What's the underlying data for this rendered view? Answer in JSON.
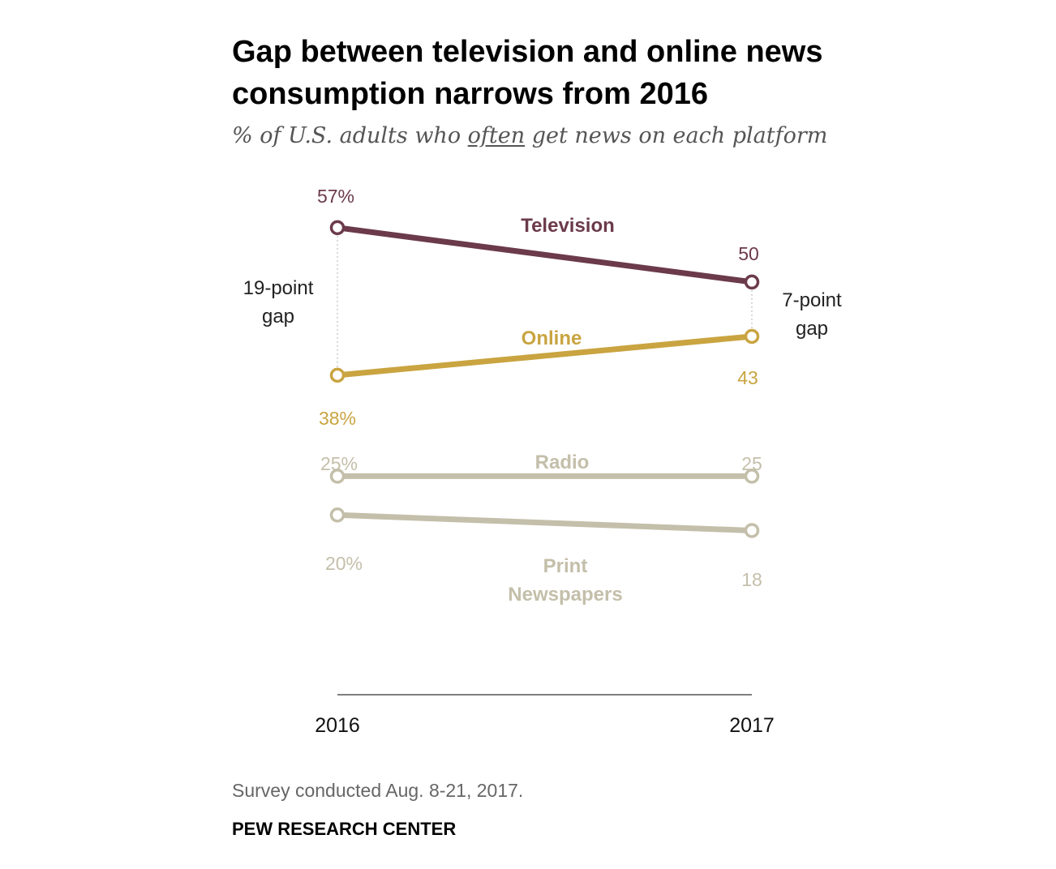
{
  "chart_data": {
    "type": "line",
    "title": "Gap between television and online news consumption narrows from 2016",
    "subtitle": {
      "before": "% of U.S. adults who ",
      "emphasis": "often",
      "after": " get news on each platform"
    },
    "x": [
      "2016",
      "2017"
    ],
    "series": [
      {
        "name": "Television",
        "label_lines": [
          "Television"
        ],
        "values": [
          57,
          50
        ],
        "value_labels": [
          "57%",
          "50"
        ],
        "color": "#6b3a4b"
      },
      {
        "name": "Online",
        "label_lines": [
          "Online"
        ],
        "values": [
          38,
          43
        ],
        "value_labels": [
          "38%",
          "43"
        ],
        "color": "#c9a440"
      },
      {
        "name": "Radio",
        "label_lines": [
          "Radio"
        ],
        "values": [
          25,
          25
        ],
        "value_labels": [
          "25%",
          "25"
        ],
        "color": "#c4bfaa"
      },
      {
        "name": "Print Newspapers",
        "label_lines": [
          "Print",
          "Newspapers"
        ],
        "values": [
          20,
          18
        ],
        "value_labels": [
          "20%",
          "18"
        ],
        "color": "#c4bfaa"
      }
    ],
    "annotations": [
      {
        "lines": [
          "19-point",
          "gap"
        ],
        "x": "2016"
      },
      {
        "lines": [
          "7-point",
          "gap"
        ],
        "x": "2017"
      }
    ],
    "ylim": [
      0,
      60
    ],
    "xlabel": "",
    "ylabel": ""
  },
  "footer": {
    "note": "Survey conducted Aug. 8-21, 2017.",
    "source": "PEW RESEARCH CENTER"
  }
}
